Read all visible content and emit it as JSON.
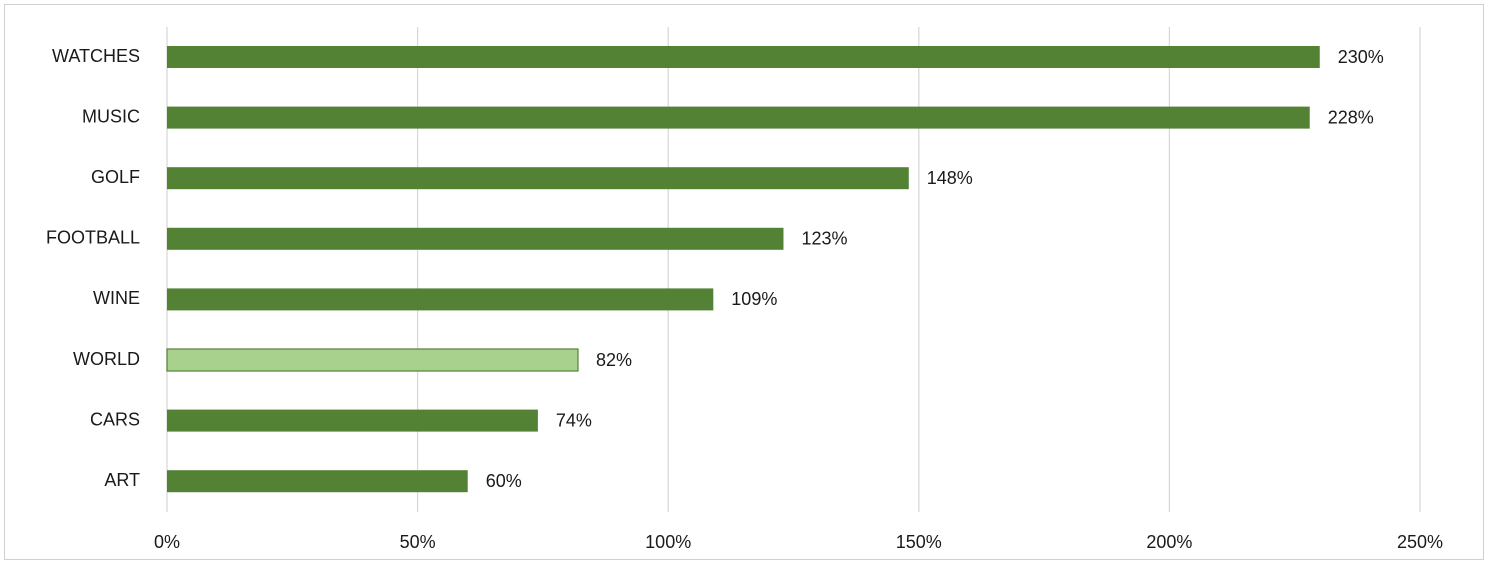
{
  "chart_data": {
    "type": "bar",
    "orientation": "horizontal",
    "categories": [
      "WATCHES",
      "MUSIC",
      "GOLF",
      "FOOTBALL",
      "WINE",
      "WORLD",
      "CARS",
      "ART"
    ],
    "values": [
      230,
      228,
      148,
      123,
      109,
      82,
      74,
      60
    ],
    "data_labels": [
      "230%",
      "228%",
      "148%",
      "123%",
      "109%",
      "82%",
      "74%",
      "60%"
    ],
    "highlighted_category": "WORLD",
    "x_ticks": [
      0,
      50,
      100,
      150,
      200,
      250
    ],
    "x_tick_labels": [
      "0%",
      "50%",
      "100%",
      "150%",
      "200%",
      "250%"
    ],
    "xlim": [
      0,
      250
    ],
    "title": "",
    "xlabel": "",
    "ylabel": "",
    "grid": "vertical",
    "legend": "none",
    "colors": {
      "bar": "#548235",
      "highlight": "#a9d18e",
      "highlight_border": "#548235",
      "grid": "#d9d9d9",
      "frame": "#d0d0d0",
      "text": "#1a1a1a"
    }
  }
}
